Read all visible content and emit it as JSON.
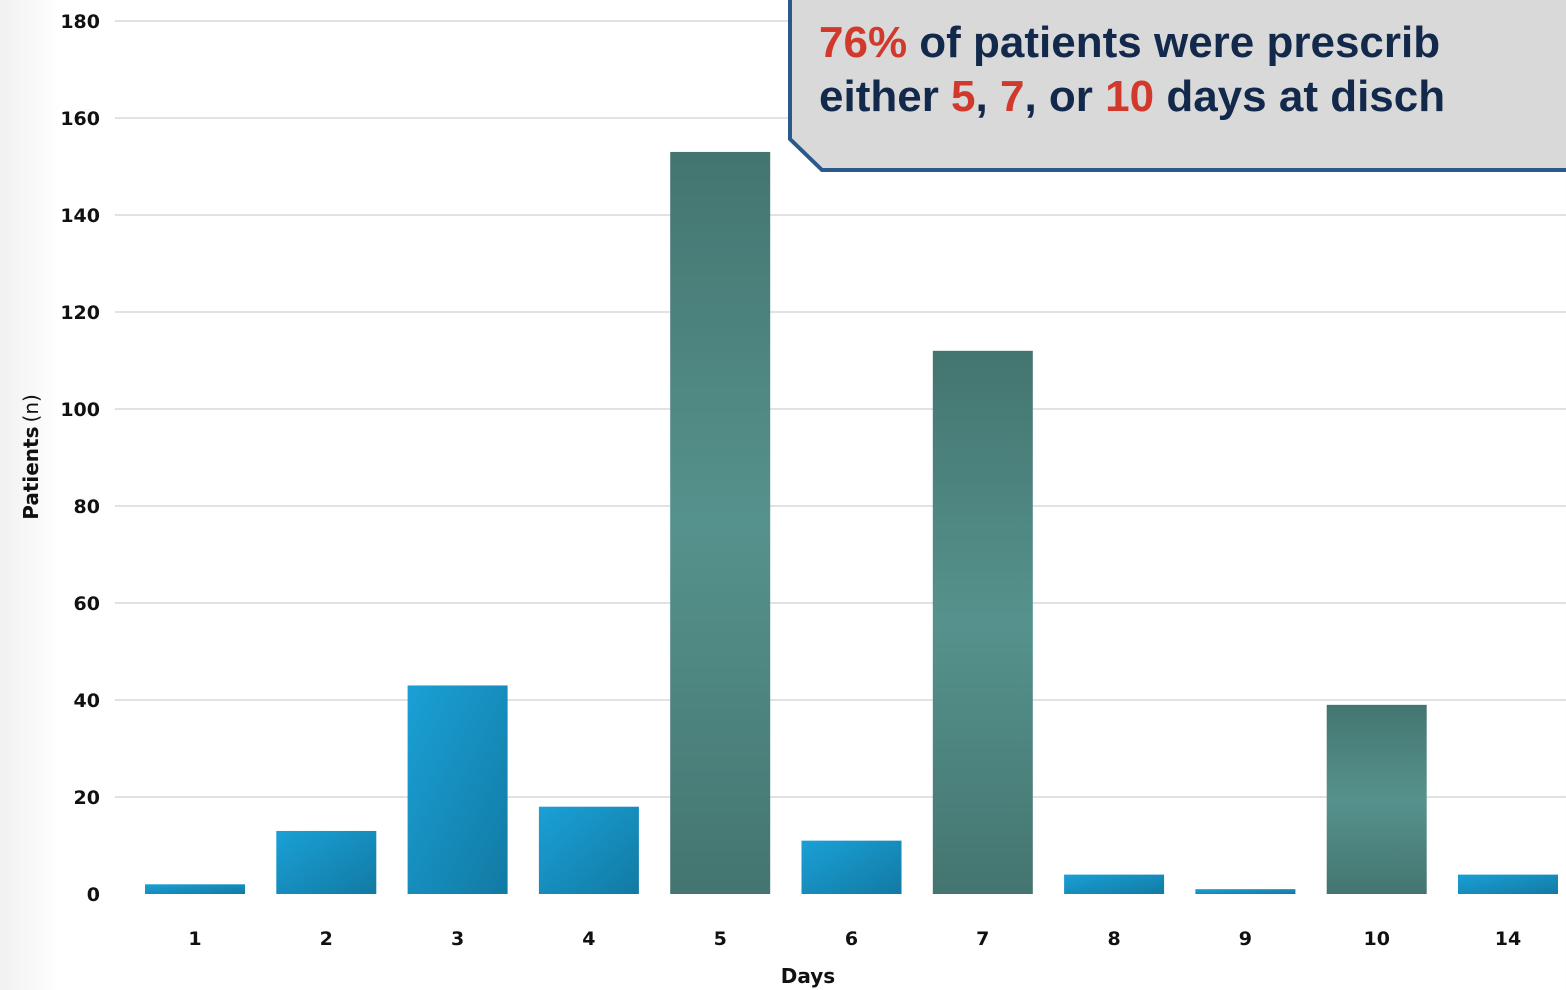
{
  "chart_data": {
    "type": "bar",
    "xlabel": "Days",
    "ylabel": "Patients",
    "ylabel_unit": "(n)",
    "ylim": [
      0,
      180
    ],
    "yticks": [
      0,
      20,
      40,
      60,
      80,
      100,
      120,
      140,
      160,
      180
    ],
    "grid": true,
    "categories": [
      "1",
      "2",
      "3",
      "4",
      "5",
      "6",
      "7",
      "8",
      "9",
      "10",
      "14"
    ],
    "values": [
      2,
      13,
      43,
      18,
      153,
      11,
      112,
      4,
      1,
      39,
      4
    ],
    "highlighted": [
      false,
      false,
      false,
      false,
      true,
      false,
      true,
      false,
      false,
      true,
      false
    ]
  },
  "colors": {
    "bar_normal": "#1a8fc2",
    "bar_highlight": "#4e8a84",
    "grid": "#d9d9d9",
    "callout_bg": "#d9d9d9",
    "callout_border": "#2a5a8c",
    "callout_text": "#13294b",
    "callout_highlight": "#d0392b"
  },
  "callout": {
    "line1_pct": "76%",
    "line1_rest": " of patients were prescrib",
    "line2_prefix": "either ",
    "line2_v1": "5",
    "line2_sep1": ", ",
    "line2_v2": "7",
    "line2_sep2": ", or ",
    "line2_v3": "10",
    "line2_rest": " days at disch"
  }
}
